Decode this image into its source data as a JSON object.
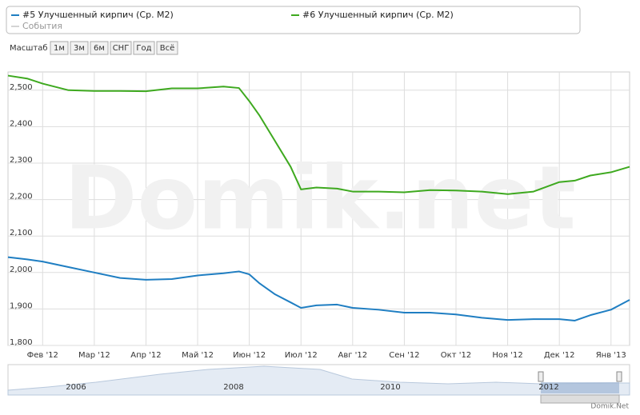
{
  "chart_data": {
    "type": "line",
    "zoom_label": "Масштаб",
    "zoom_buttons": [
      "1м",
      "3м",
      "6м",
      "СНГ",
      "Год",
      "Всё"
    ],
    "active_button": 4,
    "events_label": "События",
    "watermark": "Domik.net",
    "credit": "Domik.Net",
    "navigator_labels": [
      "2006",
      "2008",
      "2010",
      "2012"
    ],
    "grid": true,
    "x": [
      0.33,
      0.7,
      1,
      1.5,
      2,
      2.5,
      3,
      3.5,
      4,
      4.5,
      4.8,
      5,
      5.2,
      5.5,
      5.8,
      6,
      6.3,
      6.7,
      7,
      7.5,
      8,
      8.5,
      9,
      9.5,
      10,
      10.5,
      11,
      11.3,
      11.6,
      12,
      12.36
    ],
    "series": [
      {
        "name": "#5 Улучшенный кирпич (Ср. М2)",
        "color": "#1f7ec2",
        "values": [
          2042,
          2036,
          2030,
          2015,
          2000,
          1985,
          1980,
          1982,
          1992,
          1998,
          2003,
          1995,
          1970,
          1940,
          1918,
          1903,
          1910,
          1912,
          1903,
          1898,
          1890,
          1890,
          1885,
          1876,
          1870,
          1872,
          1872,
          1868,
          1883,
          1898,
          1925
        ]
      },
      {
        "name": "#6 Улучшенный кирпич (Ср. М2)",
        "color": "#3ea91f",
        "values": [
          2540,
          2532,
          2518,
          2500,
          2498,
          2498,
          2497,
          2505,
          2505,
          2510,
          2506,
          2470,
          2430,
          2360,
          2290,
          2228,
          2233,
          2230,
          2222,
          2222,
          2220,
          2226,
          2225,
          2222,
          2215,
          2222,
          2248,
          2252,
          2266,
          2275,
          2290
        ]
      }
    ],
    "xlim": [
      0.33,
      12.36
    ],
    "xticks": [
      {
        "value": 1,
        "label": "Фев '12"
      },
      {
        "value": 2,
        "label": "Мар '12"
      },
      {
        "value": 3,
        "label": "Апр '12"
      },
      {
        "value": 4,
        "label": "Май '12"
      },
      {
        "value": 5,
        "label": "Июн '12"
      },
      {
        "value": 6,
        "label": "Июл '12"
      },
      {
        "value": 7,
        "label": "Авг '12"
      },
      {
        "value": 8,
        "label": "Сен '12"
      },
      {
        "value": 9,
        "label": "Окт '12"
      },
      {
        "value": 10,
        "label": "Ноя '12"
      },
      {
        "value": 11,
        "label": "Дек '12"
      },
      {
        "value": 12,
        "label": "Янв '13"
      }
    ],
    "ylim": [
      1800,
      2550
    ],
    "yticks": [
      {
        "value": 1800,
        "label": "1,800"
      },
      {
        "value": 1900,
        "label": "1,900"
      },
      {
        "value": 2000,
        "label": "2,000"
      },
      {
        "value": 2100,
        "label": "2,100"
      },
      {
        "value": 2200,
        "label": "2,200"
      },
      {
        "value": 2300,
        "label": "2,300"
      },
      {
        "value": 2400,
        "label": "2,400"
      },
      {
        "value": 2500,
        "label": "2,500"
      }
    ]
  }
}
